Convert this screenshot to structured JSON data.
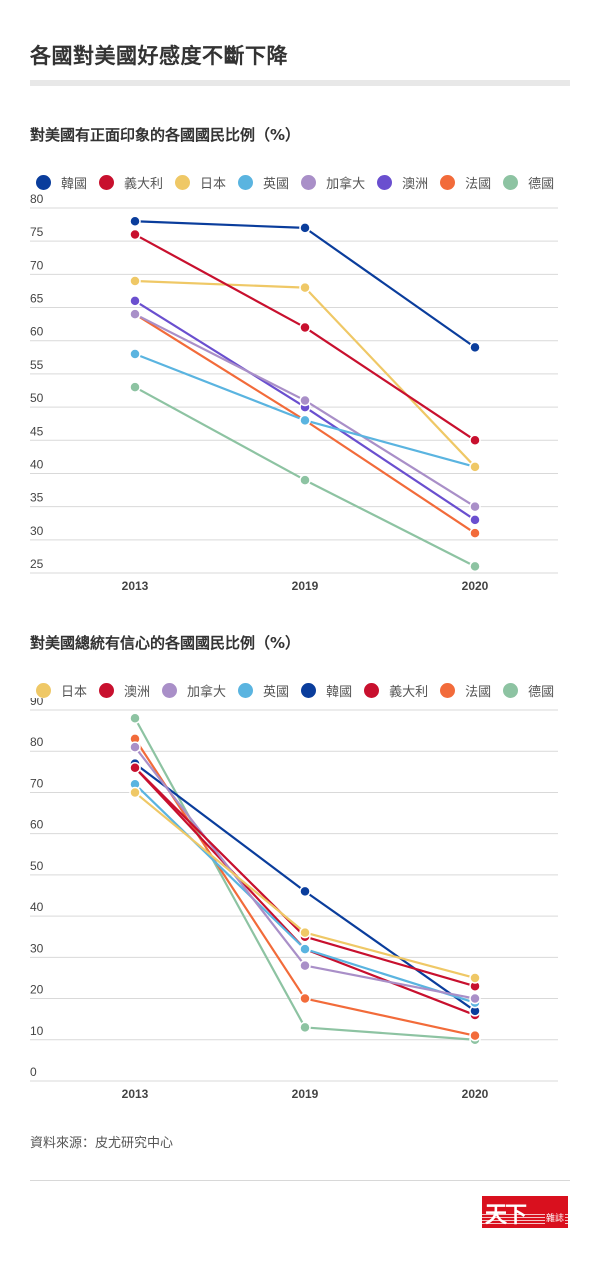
{
  "page": {
    "title": "各國對美國好感度不斷下降",
    "source": "資料來源：皮尤研究中心",
    "logo": {
      "main": "天下",
      "sub": "雜誌",
      "color": "#d9101e"
    }
  },
  "chart_data": [
    {
      "type": "line",
      "title": "對美國有正面印象的各國國民比例（%）",
      "xlabel": "",
      "ylabel": "",
      "categories": [
        "2013",
        "2019",
        "2020"
      ],
      "yticks": [
        25,
        30,
        35,
        40,
        45,
        50,
        55,
        60,
        65,
        70,
        75,
        80
      ],
      "ylim": [
        25,
        80
      ],
      "grid": true,
      "legend": "top-left",
      "series": [
        {
          "name": "韓國",
          "color": "#0a3d9c",
          "values": [
            78,
            77,
            59
          ]
        },
        {
          "name": "義大利",
          "color": "#c8102e",
          "values": [
            76,
            62,
            45
          ]
        },
        {
          "name": "日本",
          "color": "#efc866",
          "values": [
            69,
            68,
            41
          ]
        },
        {
          "name": "英國",
          "color": "#5ab4e0",
          "values": [
            58,
            48,
            41
          ]
        },
        {
          "name": "加拿大",
          "color": "#a98fc8",
          "values": [
            64,
            51,
            35
          ]
        },
        {
          "name": "澳洲",
          "color": "#6a4fcf",
          "values": [
            66,
            50,
            33
          ]
        },
        {
          "name": "法國",
          "color": "#f26b3a",
          "values": [
            64,
            48,
            31
          ]
        },
        {
          "name": "德國",
          "color": "#8dc3a2",
          "values": [
            53,
            39,
            26
          ]
        }
      ]
    },
    {
      "type": "line",
      "title": "對美國總統有信心的各國國民比例（%）",
      "xlabel": "",
      "ylabel": "",
      "categories": [
        "2013",
        "2019",
        "2020"
      ],
      "yticks": [
        0,
        10,
        20,
        30,
        40,
        50,
        60,
        70,
        80,
        90
      ],
      "ylim": [
        0,
        90
      ],
      "grid": true,
      "legend": "top-left",
      "series": [
        {
          "name": "日本",
          "color": "#efc866",
          "values": [
            70,
            36,
            25
          ]
        },
        {
          "name": "澳洲",
          "color": "#c8102e",
          "values": [
            76,
            35,
            23
          ]
        },
        {
          "name": "加拿大",
          "color": "#a98fc8",
          "values": [
            81,
            28,
            20
          ]
        },
        {
          "name": "英國",
          "color": "#5ab4e0",
          "values": [
            72,
            32,
            19
          ]
        },
        {
          "name": "韓國",
          "color": "#0a3d9c",
          "values": [
            77,
            46,
            17
          ]
        },
        {
          "name": "義大利",
          "color": "#c8102e",
          "values": [
            76,
            32,
            16
          ]
        },
        {
          "name": "法國",
          "color": "#f26b3a",
          "values": [
            83,
            20,
            11
          ]
        },
        {
          "name": "德國",
          "color": "#8dc3a2",
          "values": [
            88,
            13,
            10
          ]
        }
      ]
    }
  ]
}
